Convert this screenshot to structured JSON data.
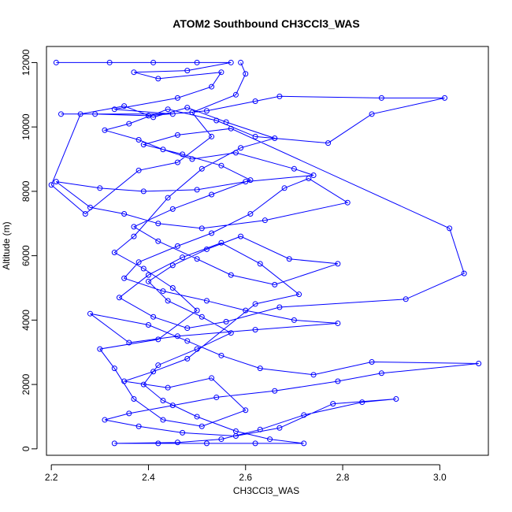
{
  "chart_data": {
    "type": "line",
    "title": "ATOM2 Southbound CH3CCl3_WAS",
    "xlabel": "CH3CCl3_WAS",
    "ylabel": "Altitude (m)",
    "xlim": [
      2.19,
      3.1
    ],
    "ylim": [
      -200,
      12500
    ],
    "xticks": [
      2.2,
      2.4,
      2.6,
      2.8,
      3.0
    ],
    "xtick_labels": [
      "2.2",
      "2.4",
      "2.6",
      "2.8",
      "3.0"
    ],
    "yticks": [
      0,
      2000,
      4000,
      6000,
      8000,
      10000,
      12000
    ],
    "ytick_labels": [
      "0",
      "2000",
      "4000",
      "6000",
      "8000",
      "10000",
      "12000"
    ],
    "grid": false,
    "legend": "none",
    "series": [
      {
        "color": "#0000ff",
        "marker": "open-circle",
        "points": [
          [
            2.21,
            12000
          ],
          [
            2.32,
            12000
          ],
          [
            2.41,
            12000
          ],
          [
            2.5,
            12000
          ],
          [
            2.57,
            12000
          ],
          [
            2.48,
            11750
          ],
          [
            2.37,
            11700
          ],
          [
            2.42,
            11500
          ],
          [
            2.55,
            11700
          ],
          [
            2.53,
            11250
          ],
          [
            2.46,
            10900
          ],
          [
            2.33,
            10550
          ],
          [
            2.45,
            10400
          ],
          [
            2.22,
            10400
          ],
          [
            2.29,
            10400
          ],
          [
            2.4,
            10350
          ],
          [
            2.52,
            10500
          ],
          [
            2.62,
            10800
          ],
          [
            2.67,
            10950
          ],
          [
            2.88,
            10900
          ],
          [
            3.01,
            10900
          ],
          [
            2.86,
            10400
          ],
          [
            2.77,
            9500
          ],
          [
            2.62,
            9700
          ],
          [
            2.54,
            10200
          ],
          [
            2.44,
            10550
          ],
          [
            2.36,
            10100
          ],
          [
            2.31,
            9900
          ],
          [
            2.38,
            9600
          ],
          [
            2.43,
            9300
          ],
          [
            2.49,
            9000
          ],
          [
            2.58,
            9200
          ],
          [
            2.7,
            8700
          ],
          [
            2.74,
            8500
          ],
          [
            2.6,
            8300
          ],
          [
            2.5,
            8050
          ],
          [
            2.39,
            8000
          ],
          [
            2.3,
            8100
          ],
          [
            2.21,
            8300
          ],
          [
            2.28,
            7500
          ],
          [
            2.35,
            7300
          ],
          [
            2.42,
            7000
          ],
          [
            2.51,
            6850
          ],
          [
            2.64,
            7100
          ],
          [
            2.81,
            7650
          ],
          [
            2.73,
            8400
          ],
          [
            2.68,
            8100
          ],
          [
            2.61,
            7300
          ],
          [
            2.53,
            6700
          ],
          [
            2.46,
            6300
          ],
          [
            2.38,
            5800
          ],
          [
            2.35,
            5300
          ],
          [
            2.43,
            4900
          ],
          [
            2.52,
            4600
          ],
          [
            2.6,
            4300
          ],
          [
            2.7,
            4000
          ],
          [
            2.79,
            3900
          ],
          [
            2.62,
            3700
          ],
          [
            2.46,
            3500
          ],
          [
            2.36,
            3300
          ],
          [
            2.28,
            4200
          ],
          [
            2.4,
            3850
          ],
          [
            2.48,
            3350
          ],
          [
            2.55,
            2900
          ],
          [
            2.63,
            2500
          ],
          [
            2.74,
            2300
          ],
          [
            2.86,
            2700
          ],
          [
            3.08,
            2650
          ],
          [
            2.88,
            2350
          ],
          [
            2.79,
            2100
          ],
          [
            2.66,
            1800
          ],
          [
            2.54,
            1600
          ],
          [
            2.45,
            1350
          ],
          [
            2.36,
            1100
          ],
          [
            2.31,
            900
          ],
          [
            2.38,
            700
          ],
          [
            2.47,
            500
          ],
          [
            2.58,
            400
          ],
          [
            2.67,
            650
          ],
          [
            2.78,
            1400
          ],
          [
            2.91,
            1550
          ],
          [
            2.84,
            1450
          ],
          [
            2.72,
            1050
          ],
          [
            2.63,
            600
          ],
          [
            2.55,
            300
          ],
          [
            2.46,
            200
          ],
          [
            2.33,
            170
          ],
          [
            2.42,
            170
          ],
          [
            2.52,
            170
          ],
          [
            2.62,
            170
          ],
          [
            2.72,
            170
          ],
          [
            2.65,
            300
          ],
          [
            2.58,
            550
          ],
          [
            2.5,
            1000
          ],
          [
            2.43,
            1500
          ],
          [
            2.39,
            2000
          ],
          [
            2.42,
            2600
          ],
          [
            2.5,
            3100
          ],
          [
            2.57,
            3600
          ],
          [
            2.51,
            4100
          ],
          [
            2.44,
            4600
          ],
          [
            2.4,
            5200
          ],
          [
            2.45,
            5700
          ],
          [
            2.52,
            6200
          ],
          [
            2.59,
            6600
          ],
          [
            2.69,
            5900
          ],
          [
            2.79,
            5750
          ],
          [
            2.66,
            5100
          ],
          [
            2.57,
            5400
          ],
          [
            2.5,
            5900
          ],
          [
            2.42,
            6450
          ],
          [
            2.37,
            6900
          ],
          [
            2.45,
            7450
          ],
          [
            2.53,
            7900
          ],
          [
            2.61,
            8350
          ],
          [
            2.55,
            8800
          ],
          [
            2.47,
            9150
          ],
          [
            2.39,
            9450
          ],
          [
            2.46,
            9750
          ],
          [
            2.57,
            9950
          ],
          [
            3.02,
            6850
          ],
          [
            3.05,
            5450
          ],
          [
            2.93,
            4650
          ],
          [
            2.67,
            4400
          ],
          [
            2.56,
            3950
          ],
          [
            2.48,
            3750
          ],
          [
            2.41,
            4100
          ],
          [
            2.34,
            4700
          ],
          [
            2.4,
            5400
          ],
          [
            2.47,
            5950
          ],
          [
            2.55,
            6400
          ],
          [
            2.63,
            5750
          ],
          [
            2.71,
            4800
          ],
          [
            2.62,
            4500
          ],
          [
            2.48,
            2800
          ],
          [
            2.41,
            2400
          ],
          [
            2.35,
            2100
          ],
          [
            2.44,
            1900
          ],
          [
            2.53,
            2200
          ],
          [
            2.6,
            1200
          ],
          [
            2.51,
            700
          ],
          [
            2.43,
            900
          ],
          [
            2.37,
            1550
          ],
          [
            2.33,
            2500
          ],
          [
            2.3,
            3100
          ],
          [
            2.42,
            3400
          ],
          [
            2.5,
            4300
          ],
          [
            2.45,
            5000
          ],
          [
            2.39,
            5600
          ],
          [
            2.33,
            6100
          ],
          [
            2.37,
            6600
          ],
          [
            2.44,
            7800
          ],
          [
            2.51,
            8700
          ],
          [
            2.59,
            9350
          ],
          [
            2.66,
            9650
          ],
          [
            2.56,
            10150
          ],
          [
            2.48,
            10600
          ],
          [
            2.41,
            10300
          ],
          [
            2.35,
            10650
          ],
          [
            2.26,
            10400
          ],
          [
            2.2,
            8200
          ],
          [
            2.27,
            7300
          ],
          [
            2.38,
            8650
          ],
          [
            2.46,
            8900
          ],
          [
            2.53,
            9700
          ],
          [
            2.49,
            10450
          ],
          [
            2.58,
            11000
          ],
          [
            2.6,
            11650
          ],
          [
            2.59,
            12000
          ]
        ]
      }
    ]
  }
}
